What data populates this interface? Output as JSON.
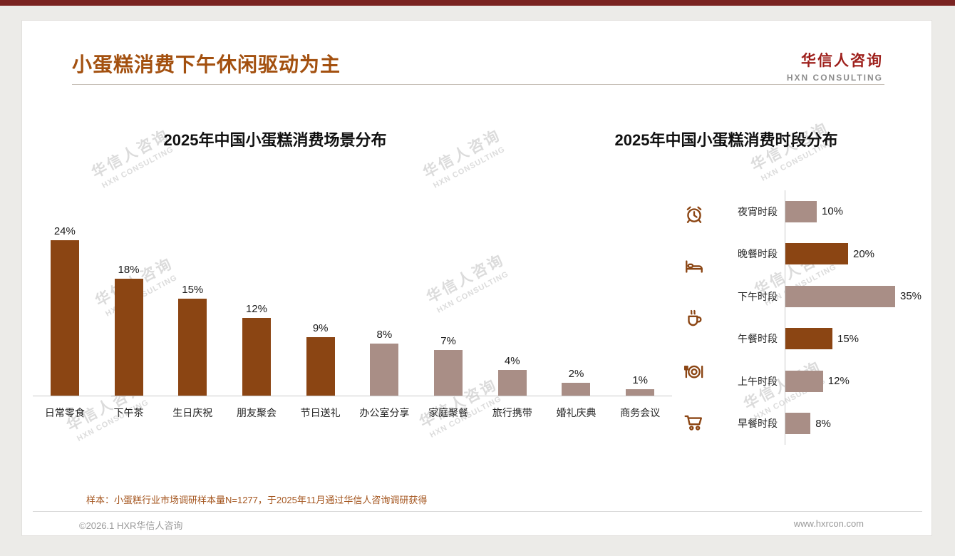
{
  "header": {
    "title": "小蛋糕消费下午休闲驱动为主",
    "logo_cn": "华信人咨询",
    "logo_en": "HXN CONSULTING"
  },
  "watermark": {
    "line1": "华信人咨询",
    "line2": "HXN CONSULTING"
  },
  "colors": {
    "dark": "#8B4513",
    "light": "#A98E86"
  },
  "chart_data": [
    {
      "type": "bar",
      "orientation": "vertical",
      "title": "2025年中国小蛋糕消费场景分布",
      "categories": [
        "日常零食",
        "下午茶",
        "生日庆祝",
        "朋友聚会",
        "节日送礼",
        "办公室分享",
        "家庭聚餐",
        "旅行携带",
        "婚礼庆典",
        "商务会议"
      ],
      "values": [
        24,
        18,
        15,
        12,
        9,
        8,
        7,
        4,
        2,
        1
      ],
      "unit": "%",
      "ylim": [
        0,
        26
      ],
      "grid": false,
      "bar_colors": [
        "dark",
        "dark",
        "dark",
        "dark",
        "dark",
        "light",
        "light",
        "light",
        "light",
        "light"
      ]
    },
    {
      "type": "bar",
      "orientation": "horizontal",
      "title": "2025年中国小蛋糕消费时段分布",
      "categories": [
        "夜宵时段",
        "晚餐时段",
        "下午时段",
        "午餐时段",
        "上午时段",
        "早餐时段"
      ],
      "values": [
        10,
        20,
        35,
        15,
        12,
        8
      ],
      "unit": "%",
      "xlim": [
        0,
        38
      ],
      "grid": false,
      "bar_colors": [
        "light",
        "dark",
        "light",
        "dark",
        "light",
        "light"
      ],
      "icons": [
        "alarm-clock-icon",
        "bed-icon",
        "coffee-cup-icon",
        "dining-plate-icon",
        "shopping-cart-icon"
      ]
    }
  ],
  "footnote": "样本：小蛋糕行业市场调研样本量N=1277，于2025年11月通过华信人咨询调研获得",
  "footer": {
    "left": "©2026.1 HXR华信人咨询",
    "right": "www.hxrcon.com"
  }
}
